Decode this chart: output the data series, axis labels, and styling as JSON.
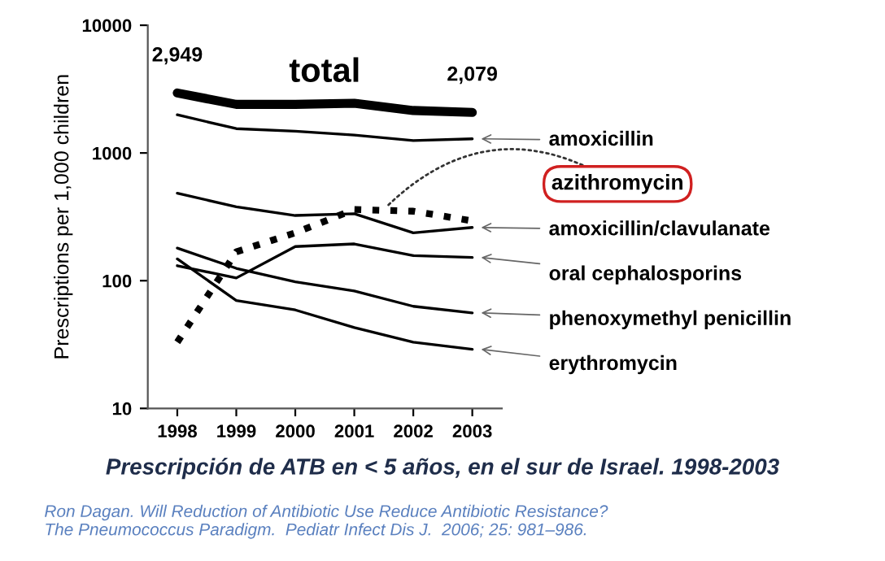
{
  "chart_data": {
    "type": "line",
    "title": "Prescripción de ATB en < 5 años, en el sur de Israel. 1998-2003",
    "ylabel": "Prescriptions per 1,000 children",
    "categories": [
      "1998",
      "1999",
      "2000",
      "2001",
      "2002",
      "2003"
    ],
    "series": [
      {
        "name": "total",
        "color": "#000000",
        "line_style": "solid",
        "values": [
          2949,
          2400,
          2400,
          2450,
          2150,
          2079
        ],
        "value_labels": [
          "2,949",
          null,
          null,
          null,
          null,
          "2,079"
        ]
      },
      {
        "name": "amoxicillin",
        "color": "#000000",
        "line_style": "solid",
        "values": [
          1990,
          1550,
          1480,
          1380,
          1250,
          1290
        ]
      },
      {
        "name": "azithromycin",
        "color": "#000000",
        "line_style": "dotted",
        "values": [
          33,
          168,
          237,
          361,
          350,
          294
        ]
      },
      {
        "name": "amoxicillin/clavulanate",
        "color": "#000000",
        "line_style": "solid",
        "values": [
          484,
          379,
          324,
          334,
          237,
          261
        ]
      },
      {
        "name": "oral cephalosporins",
        "color": "#000000",
        "line_style": "solid",
        "values": [
          131,
          105,
          185,
          194,
          157,
          152
        ]
      },
      {
        "name": "phenoxymethyl penicillin",
        "color": "#000000",
        "line_style": "solid",
        "values": [
          180,
          125,
          98,
          83,
          63,
          56
        ]
      },
      {
        "name": "erythromycin",
        "color": "#000000",
        "line_style": "solid",
        "values": [
          148,
          70,
          59,
          43,
          33,
          29
        ]
      }
    ],
    "log": "y",
    "ylim": [
      10,
      10000
    ],
    "yticks": [
      10,
      100,
      1000,
      10000
    ],
    "grid": false,
    "annotations": [
      "Ron Dagan. Will Reduction of Antibiotic Use Reduce Antibiotic Resistance?\nThe Pneumococcus Paradigm.  Pediatr Infect Dis J.  2006; 25: 981–986."
    ]
  }
}
